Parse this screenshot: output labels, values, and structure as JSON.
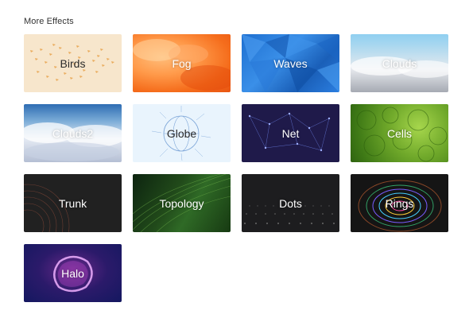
{
  "section": {
    "title": "More Effects"
  },
  "effects": [
    {
      "label": "Birds"
    },
    {
      "label": "Fog"
    },
    {
      "label": "Waves"
    },
    {
      "label": "Clouds"
    },
    {
      "label": "Clouds2"
    },
    {
      "label": "Globe"
    },
    {
      "label": "Net"
    },
    {
      "label": "Cells"
    },
    {
      "label": "Trunk"
    },
    {
      "label": "Topology"
    },
    {
      "label": "Dots"
    },
    {
      "label": "Rings"
    },
    {
      "label": "Halo"
    }
  ],
  "colors": {
    "birds_bg": "#f7e6cc",
    "fog_bg": "#f56d1c",
    "waves_bg": "#1e6fd0",
    "clouds_bg": "#b8dcef",
    "globe_bg": "#e9f4fd",
    "net_bg": "#1f1a4a",
    "cells_bg": "#6fa82a",
    "trunk_bg": "#212121",
    "topology_bg": "#214a1a",
    "dots_bg": "#1d1d1f",
    "rings_bg": "#151515",
    "halo_bg": "#2b1a6a"
  }
}
